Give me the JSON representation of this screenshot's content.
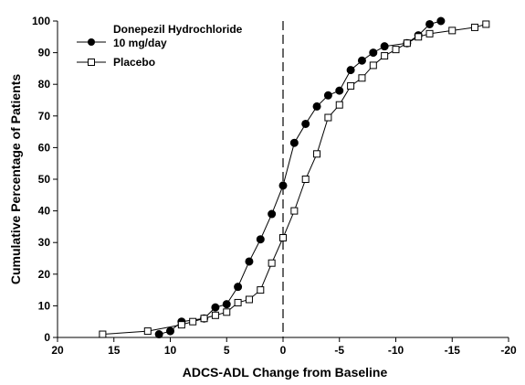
{
  "chart_data": {
    "type": "line",
    "title": "",
    "xlabel": "ADCS-ADL Change from Baseline",
    "ylabel": "Cumulative Percentage of Patients",
    "xlim": [
      20,
      -20
    ],
    "ylim": [
      0,
      100
    ],
    "x_reversed": true,
    "x_ticks": [
      20,
      15,
      10,
      5,
      0,
      -5,
      -10,
      -15,
      -20
    ],
    "x_tick_labels": [
      "20",
      "15",
      "10",
      "5",
      "0",
      "-5",
      "-10",
      "-15",
      "-20"
    ],
    "y_ticks": [
      0,
      10,
      20,
      30,
      40,
      50,
      60,
      70,
      80,
      90,
      100
    ],
    "y_tick_labels": [
      "0",
      "10",
      "20",
      "30",
      "40",
      "50",
      "60",
      "70",
      "80",
      "90",
      "100"
    ],
    "reference_line": {
      "x": 0,
      "style": "dashed"
    },
    "grid": false,
    "legend_position": "top-left",
    "series": [
      {
        "name": "Donepezil Hydrochloride 10 mg/day",
        "name_lines": [
          "Donepezil Hydrochloride",
          "10 mg/day"
        ],
        "marker": "filled-circle",
        "color": "#000000",
        "points": [
          [
            11,
            1
          ],
          [
            10,
            2
          ],
          [
            9,
            5
          ],
          [
            7,
            6
          ],
          [
            6,
            9.5
          ],
          [
            5,
            10.5
          ],
          [
            4,
            16
          ],
          [
            3,
            24
          ],
          [
            2,
            31
          ],
          [
            1,
            39
          ],
          [
            0,
            48
          ],
          [
            -1,
            61.5
          ],
          [
            -2,
            67.5
          ],
          [
            -3,
            73
          ],
          [
            -4,
            76.5
          ],
          [
            -5,
            78
          ],
          [
            -6,
            84.5
          ],
          [
            -7,
            87.5
          ],
          [
            -8,
            90
          ],
          [
            -9,
            92
          ],
          [
            -11,
            93
          ],
          [
            -12,
            95.5
          ],
          [
            -13,
            99
          ],
          [
            -14,
            100
          ]
        ]
      },
      {
        "name": "Placebo",
        "name_lines": [
          "Placebo"
        ],
        "marker": "open-square",
        "color": "#000000",
        "points": [
          [
            16,
            1
          ],
          [
            12,
            2
          ],
          [
            9,
            4
          ],
          [
            8,
            5
          ],
          [
            7,
            6
          ],
          [
            6,
            7
          ],
          [
            5,
            8
          ],
          [
            4,
            11
          ],
          [
            3,
            12
          ],
          [
            2,
            15
          ],
          [
            1,
            23.5
          ],
          [
            0,
            31.5
          ],
          [
            -1,
            40
          ],
          [
            -2,
            50
          ],
          [
            -3,
            58
          ],
          [
            -4,
            69.5
          ],
          [
            -5,
            73.5
          ],
          [
            -6,
            79.5
          ],
          [
            -7,
            82
          ],
          [
            -8,
            86
          ],
          [
            -9,
            89
          ],
          [
            -10,
            91
          ],
          [
            -11,
            93
          ],
          [
            -12,
            95
          ],
          [
            -13,
            96
          ],
          [
            -15,
            97
          ],
          [
            -17,
            98
          ],
          [
            -18,
            99
          ]
        ]
      }
    ]
  }
}
